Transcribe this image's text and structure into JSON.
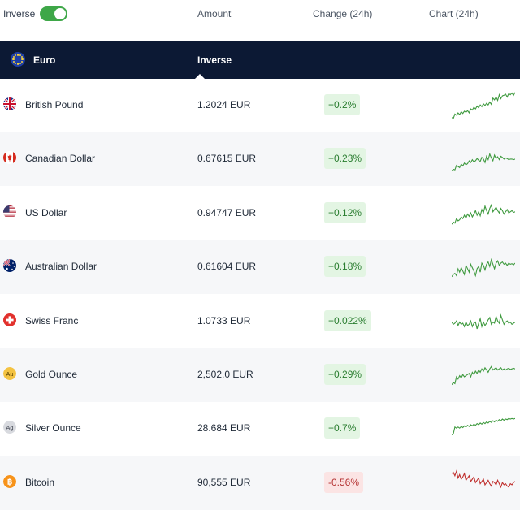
{
  "header": {
    "toggle_label": "Inverse",
    "amount_label": "Amount",
    "change_label": "Change (24h)",
    "chart_label": "Chart (24h)"
  },
  "base": {
    "name": "Euro",
    "inverse_label": "Inverse"
  },
  "colors": {
    "up": "#3f9a3f",
    "down": "#c0312f",
    "band": "#0c1934",
    "toggle": "#3ea748"
  },
  "rows": [
    {
      "name": "British Pound",
      "amount": "1.2024 EUR",
      "change": "+0.2%",
      "direction": "up",
      "icon": "uk-flag-icon",
      "spark": [
        48,
        50,
        42,
        44,
        40,
        43,
        38,
        41,
        37,
        39,
        36,
        40,
        33,
        35,
        30,
        33,
        28,
        31,
        26,
        29,
        24,
        27,
        23,
        26,
        21,
        25,
        14,
        17,
        12,
        18,
        8,
        15,
        10,
        9,
        7,
        12,
        6,
        8,
        5,
        9,
        4
      ]
    },
    {
      "name": "Canadian Dollar",
      "amount": "0.67615 EUR",
      "change": "+0.23%",
      "direction": "up",
      "icon": "canada-flag-icon",
      "spark": [
        48,
        45,
        46,
        38,
        40,
        42,
        36,
        39,
        34,
        37,
        35,
        30,
        33,
        28,
        32,
        30,
        26,
        29,
        31,
        24,
        27,
        33,
        22,
        28,
        18,
        25,
        30,
        20,
        26,
        23,
        28,
        22,
        24,
        27,
        25,
        26,
        28,
        27,
        27,
        28,
        27
      ]
    },
    {
      "name": "US Dollar",
      "amount": "0.94747 EUR",
      "change": "+0.12%",
      "direction": "up",
      "icon": "us-flag-icon",
      "spark": [
        46,
        42,
        44,
        36,
        40,
        38,
        33,
        36,
        30,
        35,
        28,
        32,
        26,
        33,
        28,
        22,
        30,
        24,
        31,
        20,
        26,
        14,
        22,
        28,
        18,
        12,
        24,
        20,
        16,
        22,
        26,
        18,
        22,
        28,
        24,
        20,
        26,
        24,
        22,
        25,
        24
      ]
    },
    {
      "name": "Australian Dollar",
      "amount": "0.61604 EUR",
      "change": "+0.18%",
      "direction": "up",
      "icon": "australia-flag-icon",
      "spark": [
        44,
        40,
        38,
        42,
        30,
        36,
        28,
        34,
        40,
        24,
        30,
        36,
        22,
        28,
        34,
        42,
        30,
        26,
        36,
        20,
        24,
        32,
        22,
        18,
        26,
        14,
        22,
        30,
        20,
        16,
        24,
        20,
        18,
        22,
        20,
        24,
        20,
        22,
        21,
        23,
        20
      ]
    },
    {
      "name": "Swiss Franc",
      "amount": "1.0733 EUR",
      "change": "+0.022%",
      "direction": "up",
      "icon": "swiss-flag-icon",
      "spark": [
        28,
        32,
        30,
        26,
        34,
        28,
        32,
        30,
        36,
        28,
        34,
        32,
        26,
        36,
        30,
        28,
        40,
        30,
        22,
        36,
        28,
        34,
        30,
        24,
        20,
        32,
        28,
        30,
        18,
        26,
        30,
        16,
        24,
        32,
        28,
        26,
        30,
        28,
        32,
        30,
        28
      ]
    },
    {
      "name": "Gold Ounce",
      "amount": "2,502.0 EUR",
      "change": "+0.29%",
      "direction": "up",
      "icon": "gold-au-icon",
      "spark": [
        44,
        40,
        42,
        30,
        34,
        28,
        32,
        26,
        30,
        28,
        26,
        24,
        30,
        22,
        26,
        20,
        24,
        18,
        22,
        16,
        20,
        14,
        18,
        22,
        16,
        12,
        18,
        16,
        14,
        18,
        16,
        14,
        18,
        16,
        18,
        16,
        15,
        17,
        16,
        15,
        16
      ]
    },
    {
      "name": "Silver Ounce",
      "amount": "28.684 EUR",
      "change": "+0.7%",
      "direction": "up",
      "icon": "silver-ag-icon",
      "spark": [
        38,
        36,
        24,
        26,
        24,
        26,
        23,
        25,
        22,
        24,
        21,
        23,
        20,
        22,
        19,
        21,
        18,
        20,
        17,
        19,
        16,
        18,
        15,
        17,
        14,
        16,
        13,
        15,
        12,
        14,
        11,
        13,
        10,
        12,
        10,
        11,
        9,
        10,
        9,
        10,
        9
      ]
    },
    {
      "name": "Bitcoin",
      "amount": "90,555 EUR",
      "change": "-0.56%",
      "direction": "down",
      "icon": "bitcoin-icon",
      "spark": [
        10,
        8,
        14,
        6,
        18,
        12,
        20,
        16,
        10,
        22,
        18,
        14,
        24,
        20,
        16,
        26,
        22,
        18,
        28,
        24,
        20,
        30,
        26,
        22,
        28,
        32,
        24,
        26,
        30,
        22,
        28,
        34,
        26,
        30,
        28,
        32,
        34,
        28,
        30,
        26,
        24
      ]
    }
  ]
}
